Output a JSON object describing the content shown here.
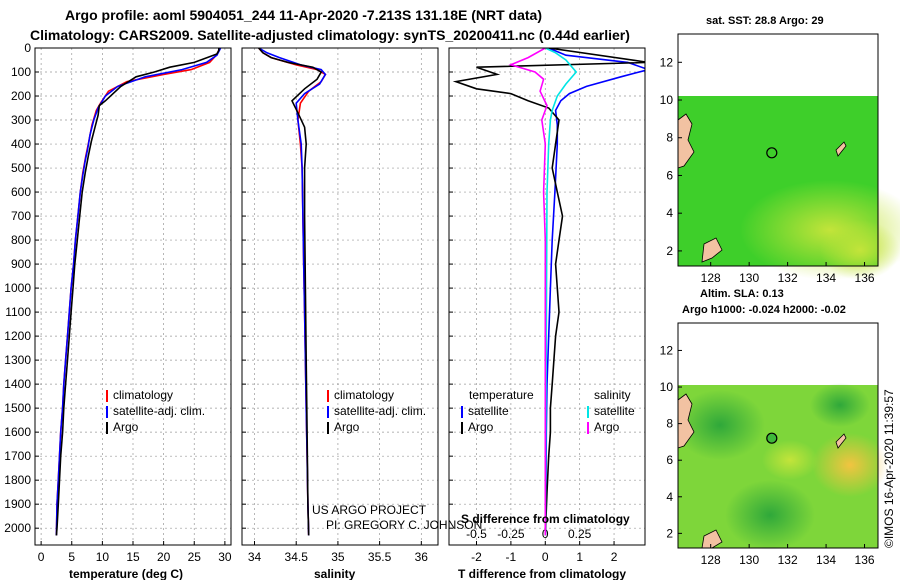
{
  "header": {
    "line1": "Argo profile: aoml 5904051_244 11-Apr-2020 -7.213S 131.18E (NRT data)",
    "line2": "Climatology: CARS2009. Satellite-adjusted climatology: synTS_20200411.nc (0.44d earlier)"
  },
  "chart_data": [
    {
      "type": "line",
      "id": "temperature",
      "xlabel": "temperature (deg C)",
      "xlim": [
        -1,
        31
      ],
      "xticks": [
        0,
        5,
        10,
        15,
        20,
        25,
        30
      ],
      "ylim": [
        2070,
        0
      ],
      "yticks": [
        0,
        100,
        200,
        300,
        400,
        500,
        600,
        700,
        800,
        900,
        1000,
        1100,
        1200,
        1300,
        1400,
        1500,
        1600,
        1700,
        1800,
        1900,
        2000
      ],
      "series": [
        {
          "name": "climatology",
          "color": "#ff0000",
          "x": [
            29.2,
            29.0,
            28.6,
            27.5,
            24.5,
            20,
            14,
            11,
            9.7,
            9.0,
            8.3,
            7.7,
            7.3,
            6.8,
            6.4,
            6.0,
            5.6,
            5.3,
            4.9,
            4.6,
            4.3,
            4.0,
            3.7,
            3.5,
            3.2,
            3.0,
            2.8,
            2.6,
            2.5
          ],
          "y": [
            0,
            10,
            30,
            60,
            90,
            110,
            140,
            180,
            230,
            260,
            320,
            400,
            450,
            520,
            600,
            700,
            800,
            900,
            1000,
            1100,
            1200,
            1300,
            1400,
            1500,
            1600,
            1700,
            1800,
            1900,
            2030
          ]
        },
        {
          "name": "satellite-adj. clim.",
          "color": "#0000ff",
          "x": [
            29.3,
            29.1,
            28.7,
            27.0,
            23.0,
            17,
            12.5,
            10.5,
            9.3,
            8.6,
            8.0,
            7.6,
            7.2,
            6.8,
            6.4,
            6.0,
            5.6,
            5.3,
            4.9,
            4.6,
            4.3,
            4.0,
            3.7,
            3.5,
            3.2,
            3.0,
            2.8,
            2.6,
            2.5
          ],
          "y": [
            0,
            10,
            30,
            60,
            90,
            120,
            160,
            200,
            250,
            300,
            360,
            420,
            470,
            530,
            600,
            700,
            800,
            900,
            1000,
            1100,
            1200,
            1300,
            1400,
            1500,
            1600,
            1700,
            1800,
            1900,
            2030
          ]
        },
        {
          "name": "Argo",
          "color": "#000000",
          "x": [
            29.0,
            29.0,
            28.7,
            25.0,
            21.0,
            18.5,
            15.5,
            13.0,
            10.5,
            9.5,
            9.3,
            8.8,
            8.2,
            7.7,
            7.2,
            6.7,
            6.3,
            5.9,
            5.5,
            5.2,
            4.9,
            4.6,
            4.3,
            4.0,
            3.7,
            3.5,
            3.2,
            3.0,
            2.8,
            2.6,
            2.5
          ],
          "y": [
            0,
            10,
            25,
            60,
            80,
            100,
            120,
            160,
            220,
            240,
            280,
            330,
            390,
            450,
            520,
            600,
            700,
            800,
            900,
            1000,
            1100,
            1200,
            1300,
            1400,
            1500,
            1600,
            1700,
            1800,
            1900,
            2000,
            2030
          ]
        }
      ],
      "legend": [
        "climatology",
        "satellite-adj. clim.",
        "Argo"
      ]
    },
    {
      "type": "line",
      "id": "salinity",
      "xlabel": "salinity",
      "xlim": [
        33.85,
        36.2
      ],
      "xticks": [
        34,
        34.5,
        35,
        35.5,
        36
      ],
      "series": [
        {
          "name": "climatology",
          "color": "#ff0000",
          "x": [
            34.05,
            34.1,
            34.2,
            34.5,
            34.75,
            34.85,
            34.8,
            34.65,
            34.55,
            34.52,
            34.55,
            34.57,
            34.58,
            34.59,
            34.6,
            34.61,
            34.62,
            34.63,
            34.64,
            34.65
          ],
          "y": [
            0,
            20,
            40,
            70,
            90,
            110,
            140,
            180,
            230,
            300,
            400,
            500,
            700,
            900,
            1100,
            1300,
            1500,
            1700,
            1900,
            2030
          ]
        },
        {
          "name": "satellite-adj. clim.",
          "color": "#0000ff",
          "x": [
            34.05,
            34.15,
            34.3,
            34.55,
            34.8,
            34.85,
            34.78,
            34.6,
            34.5,
            34.52,
            34.56,
            34.57,
            34.58,
            34.59,
            34.6,
            34.61,
            34.62,
            34.63,
            34.64,
            34.65
          ],
          "y": [
            0,
            20,
            40,
            70,
            90,
            110,
            150,
            190,
            230,
            300,
            400,
            500,
            700,
            900,
            1100,
            1300,
            1500,
            1700,
            1900,
            2030
          ]
        },
        {
          "name": "Argo",
          "color": "#000000",
          "x": [
            34.05,
            34.1,
            34.2,
            34.4,
            34.7,
            34.8,
            34.75,
            34.6,
            34.45,
            34.52,
            34.6,
            34.62,
            34.6,
            34.6,
            34.61,
            34.62,
            34.63,
            34.64,
            34.65
          ],
          "y": [
            0,
            20,
            40,
            60,
            80,
            100,
            130,
            170,
            220,
            270,
            330,
            400,
            500,
            700,
            1000,
            1300,
            1600,
            1900,
            2030
          ]
        }
      ],
      "legend": [
        "climatology",
        "satellite-adj. clim.",
        "Argo"
      ],
      "annotation": [
        "US ARGO PROJECT",
        "PI: GREGORY C. JOHNSON"
      ]
    },
    {
      "type": "line",
      "id": "difference",
      "xlabel": "T difference from climatology",
      "xlabel2": "S difference from climatology",
      "xlim": [
        -2.8,
        2.9
      ],
      "xticks": [
        -2,
        -1,
        0,
        1,
        2
      ],
      "xticks_label_s": [
        "-0.5",
        "-0.25",
        "0",
        "0.25",
        "0.5"
      ],
      "series": [
        {
          "name": "temperature satellite",
          "color": "#0000ff",
          "x": [
            0.1,
            0.6,
            2.4,
            3.0,
            2.2,
            1.2,
            0.7,
            0.45,
            0.3,
            0.35,
            0.35,
            0.28,
            0.2,
            0.15,
            0.1,
            0.05,
            0.03,
            0.02,
            0.0
          ],
          "y": [
            0,
            30,
            60,
            90,
            120,
            160,
            190,
            220,
            260,
            320,
            400,
            600,
            800,
            1000,
            1200,
            1400,
            1600,
            1800,
            2030
          ]
        },
        {
          "name": "temperature Argo",
          "color": "#000000",
          "x": [
            0.1,
            3.0,
            -2.0,
            -1.4,
            -2.6,
            -2.0,
            -1.0,
            -0.5,
            0.1,
            0.4,
            0.3,
            0.2,
            0.35,
            0.5,
            0.4,
            0.3,
            0.35,
            0.4,
            0.3,
            0.25,
            0.2,
            0.15,
            0.15,
            0.1,
            0.05,
            0.0
          ],
          "y": [
            0,
            60,
            80,
            110,
            140,
            170,
            190,
            220,
            250,
            300,
            400,
            500,
            600,
            700,
            800,
            900,
            1000,
            1100,
            1200,
            1300,
            1400,
            1500,
            1600,
            1700,
            1850,
            2030
          ]
        },
        {
          "name": "salinity satellite",
          "color": "#00e5e5",
          "x": [
            0.0,
            0.3,
            0.6,
            0.9,
            0.6,
            0.35,
            0.2,
            0.15,
            0.1,
            0.05,
            0.0
          ],
          "y": [
            0,
            20,
            50,
            100,
            150,
            200,
            260,
            300,
            400,
            600,
            2030
          ]
        },
        {
          "name": "salinity Argo",
          "color": "#ff00ff",
          "x": [
            0.0,
            -0.5,
            -1.0,
            -0.3,
            -0.05,
            -0.15,
            0.05,
            -0.1,
            0.0,
            -0.05,
            0.0,
            0.0
          ],
          "y": [
            0,
            40,
            70,
            100,
            130,
            180,
            240,
            300,
            400,
            600,
            800,
            2030
          ]
        }
      ],
      "legend_left_title": "temperature",
      "legend_right_title": "salinity",
      "legend_left": [
        "satellite",
        "Argo"
      ],
      "legend_right": [
        "satellite",
        "Argo"
      ]
    }
  ],
  "maps": [
    {
      "id": "sst_map",
      "title": "sat. SST: 28.8 Argo: 29",
      "xticks": [
        128,
        130,
        132,
        134,
        136
      ],
      "yticks": [
        2,
        4,
        6,
        8,
        10,
        12
      ],
      "xlim": [
        126.3,
        136.7
      ],
      "ylim": [
        1.2,
        13.5
      ],
      "marker": {
        "lon": 131.18,
        "lat": 7.2
      },
      "colors": {
        "base": "#3ecf2a",
        "warm": "#b9e82e"
      }
    },
    {
      "id": "sla_map",
      "title": "Altim. SLA: 0.13",
      "subtitle": "Argo h1000: -0.024 h2000: -0.02",
      "xticks": [
        128,
        130,
        132,
        134,
        136
      ],
      "yticks": [
        2,
        4,
        6,
        8,
        10,
        12
      ],
      "xlim": [
        126.3,
        136.7
      ],
      "ylim": [
        1.2,
        13.5
      ],
      "marker": {
        "lon": 131.18,
        "lat": 7.2
      },
      "colors": {
        "base": "#7ed63a",
        "dark": "#3fb83a",
        "warm": "#f0d040"
      }
    }
  ],
  "credit": "©IMOS 16-Apr-2020 11:39:57"
}
